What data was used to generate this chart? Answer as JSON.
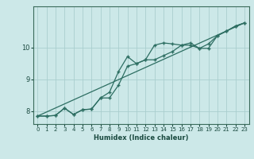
{
  "xlabel": "Humidex (Indice chaleur)",
  "background_color": "#cce8e8",
  "grid_color": "#aacece",
  "line_color": "#2d6e62",
  "xlim": [
    -0.5,
    23.5
  ],
  "ylim": [
    7.6,
    11.3
  ],
  "xticks": [
    0,
    1,
    2,
    3,
    4,
    5,
    6,
    7,
    8,
    9,
    10,
    11,
    12,
    13,
    14,
    15,
    16,
    17,
    18,
    19,
    20,
    21,
    22,
    23
  ],
  "yticks": [
    8,
    9,
    10
  ],
  "line1_x": [
    0,
    1,
    2,
    3,
    4,
    5,
    6,
    7,
    8,
    9,
    10,
    11,
    12,
    13,
    14,
    15,
    16,
    17,
    18,
    19,
    20,
    21,
    22,
    23
  ],
  "line1_y": [
    7.85,
    7.85,
    7.87,
    8.1,
    7.9,
    8.05,
    8.07,
    8.42,
    8.42,
    8.82,
    9.42,
    9.5,
    9.62,
    10.08,
    10.15,
    10.12,
    10.08,
    10.08,
    9.98,
    9.98,
    10.38,
    10.52,
    10.68,
    10.78
  ],
  "line2_x": [
    0,
    1,
    2,
    3,
    4,
    5,
    6,
    7,
    8,
    9,
    10,
    11,
    12,
    13,
    14,
    15,
    16,
    17,
    18,
    19,
    20,
    21,
    22,
    23
  ],
  "line2_y": [
    7.85,
    7.85,
    7.87,
    8.1,
    7.9,
    8.05,
    8.07,
    8.42,
    8.6,
    9.25,
    9.72,
    9.5,
    9.62,
    9.62,
    9.75,
    9.88,
    10.08,
    10.15,
    9.98,
    10.12,
    10.38,
    10.52,
    10.68,
    10.78
  ],
  "line3_x": [
    0,
    23
  ],
  "line3_y": [
    7.85,
    10.78
  ]
}
